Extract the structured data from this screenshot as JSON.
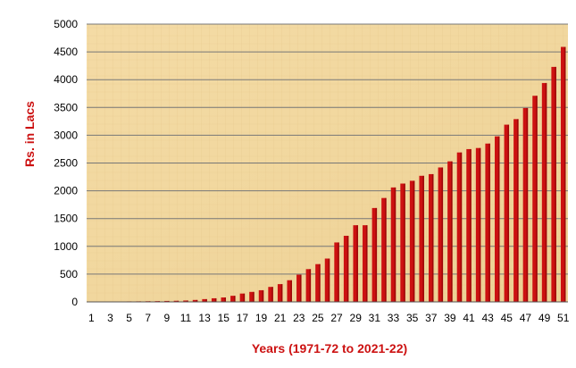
{
  "chart_data": {
    "type": "bar",
    "title": "",
    "xlabel": "Years (1971-72 to 2021-22)",
    "ylabel": "Rs. in Lacs",
    "x_tick_labels": [
      "1",
      "3",
      "5",
      "7",
      "9",
      "11",
      "13",
      "15",
      "17",
      "19",
      "21",
      "23",
      "25",
      "27",
      "29",
      "31",
      "33",
      "35",
      "37",
      "39",
      "41",
      "43",
      "45",
      "47",
      "49",
      "51"
    ],
    "y_tick_labels": [
      "0",
      "500",
      "1000",
      "1500",
      "2000",
      "2500",
      "3000",
      "3500",
      "4000",
      "4500",
      "5000"
    ],
    "ylim": [
      0,
      5000
    ],
    "grid": true,
    "legend": "none",
    "categories": [
      1,
      2,
      3,
      4,
      5,
      6,
      7,
      8,
      9,
      10,
      11,
      12,
      13,
      14,
      15,
      16,
      17,
      18,
      19,
      20,
      21,
      22,
      23,
      24,
      25,
      26,
      27,
      28,
      29,
      30,
      31,
      32,
      33,
      34,
      35,
      36,
      37,
      38,
      39,
      40,
      41,
      42,
      43,
      44,
      45,
      46,
      47,
      48,
      49,
      50,
      51
    ],
    "values": [
      5,
      6,
      7,
      8,
      9,
      10,
      12,
      14,
      17,
      20,
      25,
      35,
      50,
      65,
      80,
      110,
      150,
      180,
      210,
      270,
      320,
      390,
      490,
      590,
      680,
      780,
      1070,
      1190,
      1380,
      1380,
      1690,
      1870,
      2060,
      2130,
      2180,
      2270,
      2300,
      2420,
      2530,
      2690,
      2750,
      2770,
      2850,
      2980,
      3190,
      3290,
      3490,
      3710,
      3940,
      4230,
      4590
    ],
    "colors": {
      "bar": "#cc1111",
      "bar_shade": "#7a0000",
      "axis_title": "#cc1111",
      "grid": "#777777"
    }
  }
}
